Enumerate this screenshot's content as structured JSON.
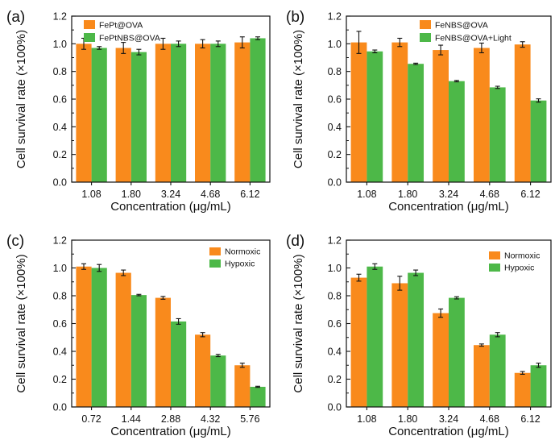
{
  "colors": {
    "series1": "#f98a1c",
    "series2": "#4db848",
    "axis": "#111111"
  },
  "chart_data": [
    {
      "type": "bar",
      "panel_label": "(a)",
      "xlabel": "Concentration (μg/mL)",
      "ylabel": "Cell survival rate (×100%)",
      "ylim": [
        0,
        1.2
      ],
      "yticks": [
        "0.0",
        "0.2",
        "0.4",
        "0.6",
        "0.8",
        "1.0",
        "1.2"
      ],
      "categories": [
        "1.08",
        "1.80",
        "3.24",
        "4.68",
        "6.12"
      ],
      "legend_position": "top-left",
      "series": [
        {
          "name": "FePt@OVA",
          "values": [
            1.0,
            0.97,
            1.0,
            1.0,
            1.01
          ],
          "errors": [
            0.04,
            0.04,
            0.04,
            0.03,
            0.04
          ]
        },
        {
          "name": "FePtNBS@OVA",
          "values": [
            0.97,
            0.94,
            1.0,
            1.0,
            1.04
          ],
          "errors": [
            0.01,
            0.02,
            0.02,
            0.02,
            0.01
          ]
        }
      ]
    },
    {
      "type": "bar",
      "panel_label": "(b)",
      "xlabel": "Concentration (μg/mL)",
      "ylabel": "Cell survival rate (×100%)",
      "ylim": [
        0,
        1.2
      ],
      "yticks": [
        "0.0",
        "0.2",
        "0.4",
        "0.6",
        "0.8",
        "1.0",
        "1.2"
      ],
      "categories": [
        "1.08",
        "1.80",
        "3.24",
        "4.68",
        "6.12"
      ],
      "legend_position": "top-right",
      "series": [
        {
          "name": "FeNBS@OVA",
          "values": [
            1.01,
            1.01,
            0.955,
            0.97,
            0.995
          ],
          "errors": [
            0.08,
            0.03,
            0.035,
            0.035,
            0.02
          ]
        },
        {
          "name": "FeNBS@OVA+Light",
          "values": [
            0.945,
            0.855,
            0.73,
            0.685,
            0.59
          ],
          "errors": [
            0.01,
            0.005,
            0.005,
            0.008,
            0.012
          ]
        }
      ]
    },
    {
      "type": "bar",
      "panel_label": "(c)",
      "xlabel": "Concentration (μg/mL)",
      "ylabel": "Cell survival rate (×100%)",
      "ylim": [
        0,
        1.2
      ],
      "yticks": [
        "0.0",
        "0.2",
        "0.4",
        "0.6",
        "0.8",
        "1.0",
        "1.2"
      ],
      "categories": [
        "0.72",
        "1.44",
        "2.88",
        "4.32",
        "5.76"
      ],
      "legend_position": "top-right",
      "series": [
        {
          "name": "Normoxic",
          "values": [
            1.01,
            0.965,
            0.785,
            0.52,
            0.3
          ],
          "errors": [
            0.02,
            0.02,
            0.01,
            0.015,
            0.015
          ]
        },
        {
          "name": "Hypoxic",
          "values": [
            1.0,
            0.805,
            0.615,
            0.37,
            0.145
          ],
          "errors": [
            0.025,
            0.005,
            0.02,
            0.008,
            0.004
          ]
        }
      ]
    },
    {
      "type": "bar",
      "panel_label": "(d)",
      "xlabel": "Concentration (μg/mL)",
      "ylabel": "Cell survival rate (×100%)",
      "ylim": [
        0,
        1.2
      ],
      "yticks": [
        "0.0",
        "0.2",
        "0.4",
        "0.6",
        "0.8",
        "1.0",
        "1.2"
      ],
      "categories": [
        "1.08",
        "1.80",
        "3.24",
        "4.68",
        "6.12"
      ],
      "legend_position": "top-right",
      "series": [
        {
          "name": "Normoxic",
          "values": [
            0.93,
            0.89,
            0.675,
            0.445,
            0.245
          ],
          "errors": [
            0.025,
            0.05,
            0.03,
            0.008,
            0.01
          ]
        },
        {
          "name": "Hypoxic",
          "values": [
            1.01,
            0.965,
            0.785,
            0.52,
            0.3
          ],
          "errors": [
            0.02,
            0.02,
            0.008,
            0.015,
            0.015
          ]
        }
      ]
    }
  ]
}
